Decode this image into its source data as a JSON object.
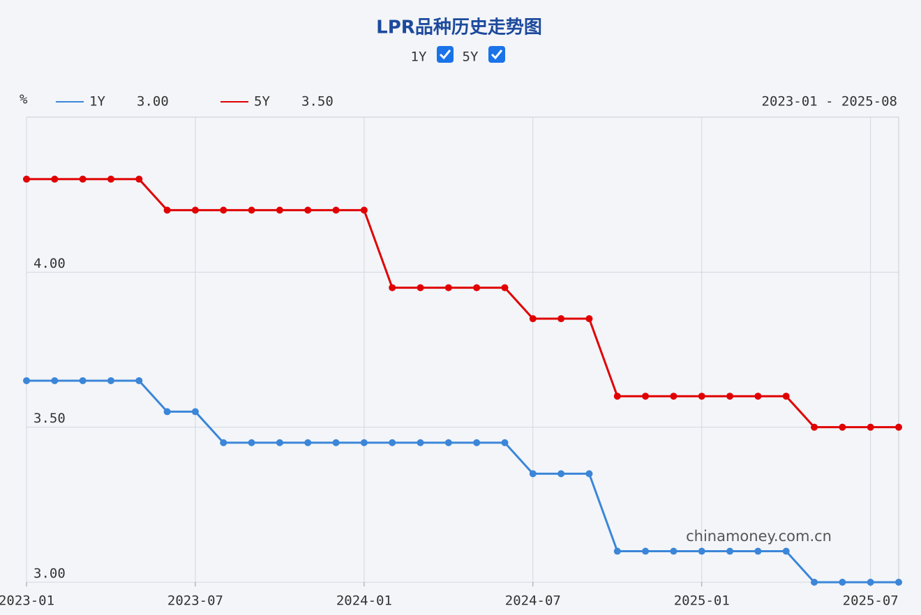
{
  "chart_data": {
    "type": "line",
    "title": "LPR品种历史走势图",
    "y_unit": "%",
    "range_label": "2023-01 - 2025-08",
    "watermark": "chinamoney.com.cn",
    "x": [
      "2023-01",
      "2023-02",
      "2023-03",
      "2023-04",
      "2023-05",
      "2023-06",
      "2023-07",
      "2023-08",
      "2023-09",
      "2023-10",
      "2023-11",
      "2023-12",
      "2024-01",
      "2024-02",
      "2024-03",
      "2024-04",
      "2024-05",
      "2024-06",
      "2024-07",
      "2024-08",
      "2024-09",
      "2024-10",
      "2024-11",
      "2024-12",
      "2025-01",
      "2025-02",
      "2025-03",
      "2025-04",
      "2025-05",
      "2025-06",
      "2025-07",
      "2025-08"
    ],
    "xticks": [
      "2023-01",
      "2023-07",
      "2024-01",
      "2024-07",
      "2025-01",
      "2025-07"
    ],
    "series": [
      {
        "name": "1Y",
        "color": "#3b86d8",
        "latest_label": "3.00",
        "values": [
          3.65,
          3.65,
          3.65,
          3.65,
          3.65,
          3.55,
          3.55,
          3.45,
          3.45,
          3.45,
          3.45,
          3.45,
          3.45,
          3.45,
          3.45,
          3.45,
          3.45,
          3.45,
          3.35,
          3.35,
          3.35,
          3.1,
          3.1,
          3.1,
          3.1,
          3.1,
          3.1,
          3.1,
          3.0,
          3.0,
          3.0,
          3.0
        ]
      },
      {
        "name": "5Y",
        "color": "#e00000",
        "latest_label": "3.50",
        "values": [
          4.3,
          4.3,
          4.3,
          4.3,
          4.3,
          4.2,
          4.2,
          4.2,
          4.2,
          4.2,
          4.2,
          4.2,
          4.2,
          3.95,
          3.95,
          3.95,
          3.95,
          3.95,
          3.85,
          3.85,
          3.85,
          3.6,
          3.6,
          3.6,
          3.6,
          3.6,
          3.6,
          3.6,
          3.5,
          3.5,
          3.5,
          3.5
        ]
      }
    ],
    "ylim": [
      3.0,
      4.5
    ],
    "yticks": [
      {
        "value": 3.0,
        "label": "3.00"
      },
      {
        "value": 3.5,
        "label": "3.50"
      },
      {
        "value": 4.0,
        "label": "4.00"
      }
    ],
    "grid": true
  }
}
